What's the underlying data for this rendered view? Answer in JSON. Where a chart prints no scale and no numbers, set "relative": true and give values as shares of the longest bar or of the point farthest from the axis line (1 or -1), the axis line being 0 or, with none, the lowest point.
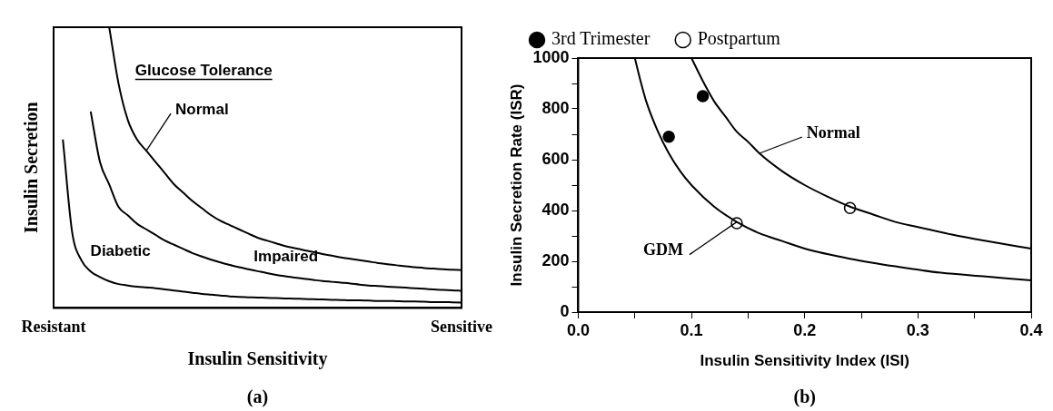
{
  "chart_data": [
    {
      "type": "line",
      "relative": true,
      "xlabel": "Insulin Sensitivity",
      "ylabel": "Insulin Secretion",
      "legend_title": "Glucose Tolerance",
      "legend": false,
      "marker": "none",
      "annotations": [
        "(a)"
      ],
      "categories": [
        "Resistant",
        null,
        null,
        null,
        null,
        null,
        null,
        null,
        null,
        null,
        null,
        null,
        null,
        null,
        null,
        null,
        null,
        null,
        null,
        null,
        null,
        null,
        null,
        null,
        null,
        null,
        null,
        null,
        null,
        null,
        null,
        null,
        null,
        null,
        null,
        null,
        null,
        null,
        null,
        null,
        null,
        null,
        null,
        null,
        "Sensitive"
      ],
      "series": [
        {
          "name": "Normal",
          "color": "#000000",
          "values": [
            null,
            null,
            null,
            null,
            null,
            null,
            1,
            0.8,
            0.67,
            0.6,
            0.56,
            0.52,
            0.48,
            0.44,
            0.41,
            0.38,
            0.355,
            0.33,
            0.31,
            0.295,
            0.28,
            0.265,
            0.25,
            0.24,
            0.23,
            0.22,
            0.213,
            0.206,
            0.199,
            0.192,
            0.186,
            0.18,
            0.175,
            0.17,
            0.165,
            0.16,
            0.156,
            0.152,
            0.148,
            0.145,
            0.142,
            0.14,
            0.138,
            0.136,
            0.135
          ]
        },
        {
          "name": "Impaired",
          "color": "#000000",
          "values": [
            null,
            null,
            null,
            null,
            0.7,
            0.52,
            0.44,
            0.36,
            0.33,
            0.3,
            0.28,
            0.26,
            0.24,
            0.225,
            0.21,
            0.195,
            0.183,
            0.172,
            0.162,
            0.153,
            0.145,
            0.138,
            0.131,
            0.124,
            0.118,
            0.113,
            0.108,
            0.104,
            0.1,
            0.096,
            0.093,
            0.09,
            0.087,
            0.083,
            0.08,
            0.078,
            0.076,
            0.074,
            0.072,
            0.07,
            0.068,
            0.066,
            0.064,
            0.063,
            0.061
          ]
        },
        {
          "name": "Diabetic",
          "color": "#000000",
          "values": [
            null,
            0.6,
            0.27,
            0.17,
            0.13,
            0.11,
            0.095,
            0.085,
            0.08,
            0.076,
            0.073,
            0.07,
            0.066,
            0.062,
            0.058,
            0.054,
            0.05,
            0.047,
            0.044,
            0.041,
            0.039,
            0.038,
            0.037,
            0.036,
            0.035,
            0.034,
            0.033,
            0.032,
            0.031,
            0.03,
            0.029,
            0.028,
            0.027,
            0.027,
            0.026,
            0.025,
            0.025,
            0.024,
            0.023,
            0.023,
            0.022,
            0.021,
            0.021,
            0.02,
            0.019
          ]
        }
      ]
    },
    {
      "type": "scatter",
      "xlabel": "Insulin Sensitivity Index (ISI)",
      "ylabel": "Insulin Secretion Rate (ISR)",
      "legend": "top",
      "marker": "circle",
      "annotations": [
        "(b)"
      ],
      "xlim": [
        0,
        0.4
      ],
      "xticks": [
        {
          "value": 0,
          "label": "0.0"
        },
        {
          "value": 0.05,
          "label": null
        },
        0.1,
        {
          "value": 0.15,
          "label": null
        },
        0.2,
        {
          "value": 0.25,
          "label": null
        },
        0.3,
        {
          "value": 0.35,
          "label": null
        },
        0.4
      ],
      "ylim": [
        0,
        1000
      ],
      "yticks": [
        0,
        {
          "value": 100,
          "label": null
        },
        200,
        {
          "value": 300,
          "label": null
        },
        400,
        {
          "value": 500,
          "label": null
        },
        600,
        {
          "value": 700,
          "label": null
        },
        800,
        {
          "value": 900,
          "label": null
        },
        1000
      ],
      "series": [
        {
          "name": "Normal",
          "type": "line",
          "marker": "none",
          "color": "#000000",
          "x": [
            0.1,
            0.11,
            0.12,
            0.13,
            0.14,
            0.15,
            0.16,
            0.18,
            0.2,
            0.22,
            0.24,
            0.26,
            0.28,
            0.3,
            0.33,
            0.36,
            0.4
          ],
          "values": [
            1000,
            910,
            830,
            770,
            710,
            670,
            625,
            555,
            500,
            455,
            415,
            385,
            355,
            335,
            305,
            280,
            250
          ]
        },
        {
          "name": "GDM",
          "type": "line",
          "marker": "none",
          "color": "#000000",
          "x": [
            0.05,
            0.055,
            0.06,
            0.07,
            0.08,
            0.09,
            0.1,
            0.12,
            0.14,
            0.16,
            0.18,
            0.2,
            0.24,
            0.28,
            0.32,
            0.36,
            0.4
          ],
          "values": [
            1000,
            910,
            830,
            715,
            625,
            555,
            500,
            415,
            355,
            310,
            280,
            250,
            210,
            180,
            155,
            140,
            125
          ]
        },
        {
          "name": "3rd Trimester",
          "type": "scatter",
          "color": "#000000",
          "x": [
            0.08,
            0.11
          ],
          "values": [
            690,
            850
          ]
        },
        {
          "name": "Postpartum",
          "type": "scatter",
          "color": "#ffffff",
          "x": [
            0.14,
            0.24
          ],
          "values": [
            350,
            410
          ]
        }
      ]
    }
  ]
}
